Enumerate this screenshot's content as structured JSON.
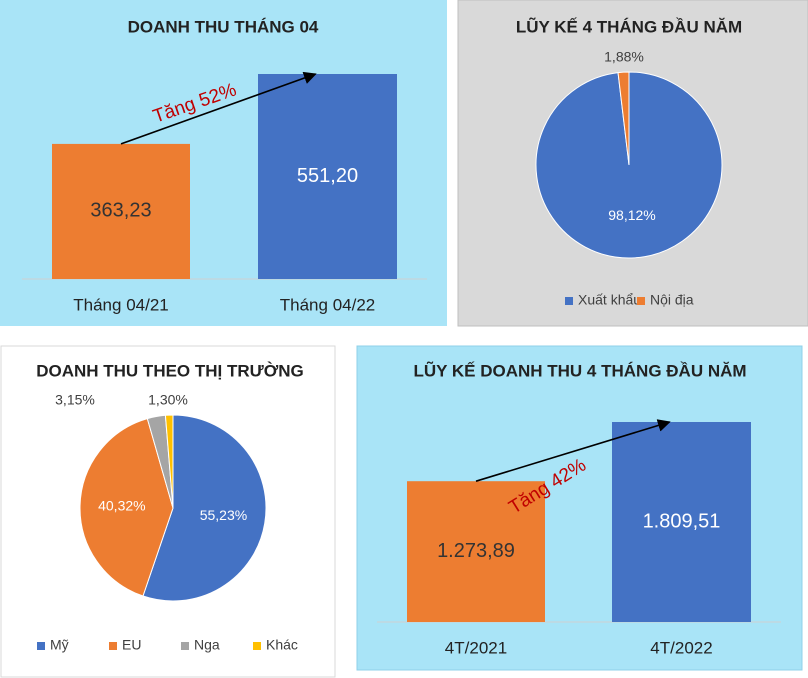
{
  "chart_data": [
    {
      "type": "bar",
      "title": "DOANH THU THÁNG 04",
      "categories": [
        "Tháng 04/21",
        "Tháng 04/22"
      ],
      "values": [
        363.23,
        551.2
      ],
      "value_labels": [
        "363,23",
        "551,20"
      ],
      "colors": [
        "#ed7d31",
        "#4472c4"
      ],
      "annotation": "Tăng 52%"
    },
    {
      "type": "pie",
      "title": "LŨY KẾ 4 THÁNG ĐẦU NĂM",
      "categories": [
        "Xuất khẩu",
        "Nội địa"
      ],
      "values": [
        98.12,
        1.88
      ],
      "value_labels": [
        "98,12%",
        "1,88%"
      ],
      "colors": [
        "#4472c4",
        "#ed7d31"
      ]
    },
    {
      "type": "pie",
      "title": "DOANH THU THEO THỊ TRƯỜNG",
      "categories": [
        "Mỹ",
        "EU",
        "Nga",
        "Khác"
      ],
      "values": [
        55.23,
        40.32,
        3.15,
        1.3
      ],
      "value_labels": [
        "55,23%",
        "40,32%",
        "3,15%",
        "1,30%"
      ],
      "colors": [
        "#4472c4",
        "#ed7d31",
        "#a5a5a5",
        "#ffc000"
      ]
    },
    {
      "type": "bar",
      "title": "LŨY KẾ DOANH THU 4 THÁNG ĐẦU NĂM",
      "categories": [
        "4T/2021",
        "4T/2022"
      ],
      "values": [
        1273.89,
        1809.51
      ],
      "value_labels": [
        "1.273,89",
        "1.809,51"
      ],
      "colors": [
        "#ed7d31",
        "#4472c4"
      ],
      "annotation": "Tăng 42%"
    }
  ]
}
